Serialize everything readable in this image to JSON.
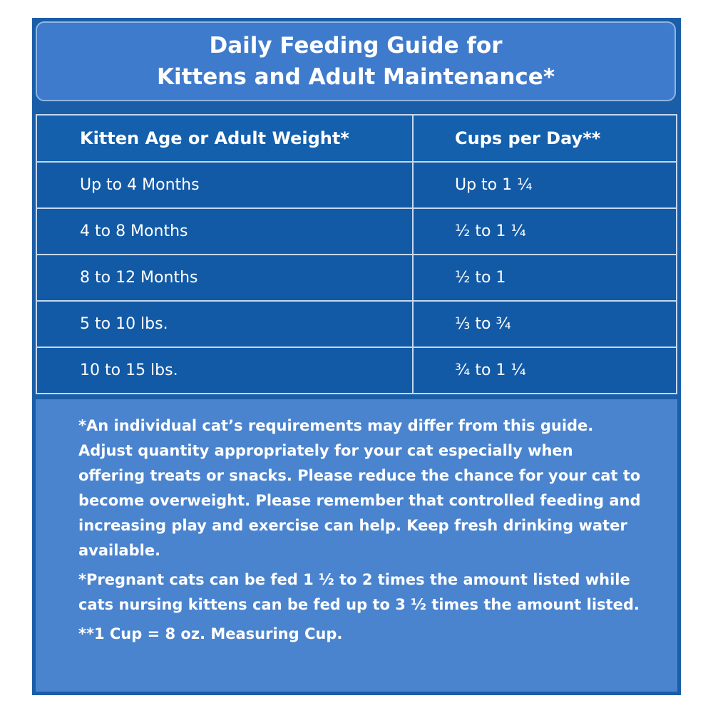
{
  "header": {
    "title_lines": [
      "Daily Feeding Guide for",
      "Kittens and Adult Maintenance*"
    ]
  },
  "table": {
    "columns": [
      "Kitten Age or Adult Weight*",
      "Cups per Day**"
    ],
    "rows": [
      [
        "Up to 4 Months",
        "Up to 1 ¼"
      ],
      [
        "4 to 8 Months",
        "½ to 1 ¼"
      ],
      [
        "8 to 12 Months",
        "½ to 1"
      ],
      [
        "5 to 10 lbs.",
        "⅓ to ¾"
      ],
      [
        "10 to 15 lbs.",
        "¾ to 1 ¼"
      ]
    ]
  },
  "notes": [
    "*An individual cat’s requirements may differ from this guide. Adjust quantity appropriately for your cat especially when offering treats or snacks. Please reduce the chance for your cat to become overweight. Please remember that controlled feeding and increasing play and exercise can help. Keep fresh drinking water available.",
    "*Pregnant cats can be fed 1 ½ to 2 times the amount listed while cats nursing kittens can be fed up to 3 ½ times the amount listed.",
    "**1 Cup = 8 oz. Measuring Cup."
  ]
}
